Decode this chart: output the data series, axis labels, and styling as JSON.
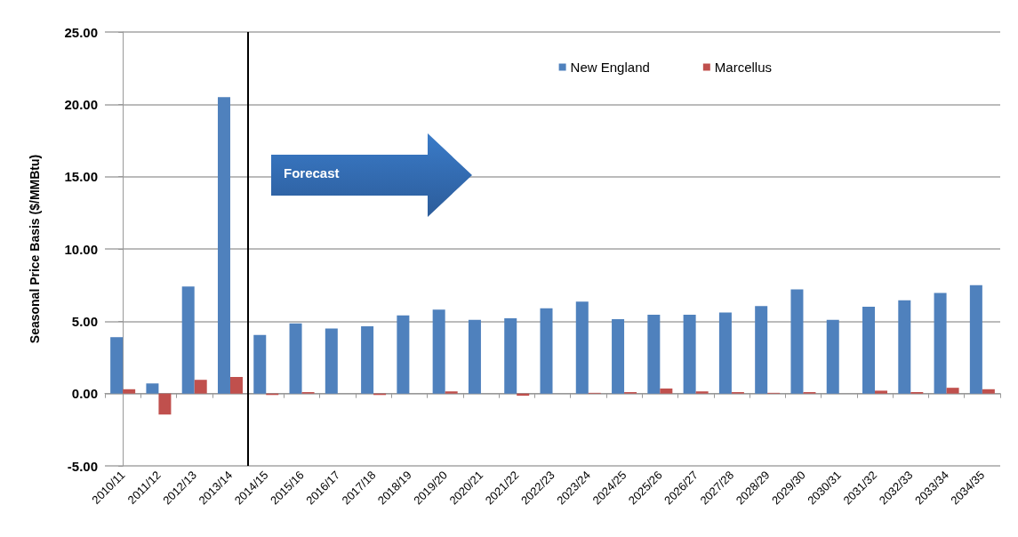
{
  "chart_data": {
    "type": "bar",
    "ylabel": "Seasonal Price Basis ($/MMBtu)",
    "categories": [
      "2010/11",
      "2011/12",
      "2012/13",
      "2013/14",
      "2014/15",
      "2015/16",
      "2016/17",
      "2017/18",
      "2018/19",
      "2019/20",
      "2020/21",
      "2021/22",
      "2022/23",
      "2023/24",
      "2024/25",
      "2025/26",
      "2026/27",
      "2027/28",
      "2028/29",
      "2029/30",
      "2030/31",
      "2031/32",
      "2032/33",
      "2033/34",
      "2034/35"
    ],
    "series": [
      {
        "name": "New England",
        "color": "#4f81bd",
        "values": [
          3.9,
          0.7,
          7.4,
          20.5,
          4.05,
          4.85,
          4.5,
          4.65,
          5.4,
          5.8,
          5.1,
          5.2,
          5.9,
          6.35,
          5.15,
          5.45,
          5.45,
          5.6,
          6.05,
          7.2,
          5.1,
          6.0,
          6.45,
          6.95,
          7.5
        ]
      },
      {
        "name": "Marcellus",
        "color": "#c0504d",
        "values": [
          0.3,
          -1.45,
          0.95,
          1.15,
          -0.1,
          0.1,
          0,
          -0.1,
          null,
          0.15,
          null,
          -0.15,
          null,
          0.05,
          0.1,
          0.35,
          0.15,
          0.1,
          0.05,
          0.1,
          null,
          0.2,
          0.1,
          0.4,
          0.3
        ]
      }
    ],
    "ylim": [
      -5,
      25
    ],
    "yticks": [
      {
        "value": -5,
        "label": "-5.00"
      },
      {
        "value": 0,
        "label": "0.00"
      },
      {
        "value": 5,
        "label": "5.00"
      },
      {
        "value": 10,
        "label": "10.00"
      },
      {
        "value": 15,
        "label": "15.00"
      },
      {
        "value": 20,
        "label": "20.00"
      },
      {
        "value": 25,
        "label": "25.00"
      }
    ],
    "ref_lines": [
      {
        "axis": "x",
        "value": "2014/15",
        "color": "#000000"
      }
    ],
    "annotations": [
      "Forecast"
    ],
    "grid": "y",
    "legend": "top right"
  }
}
